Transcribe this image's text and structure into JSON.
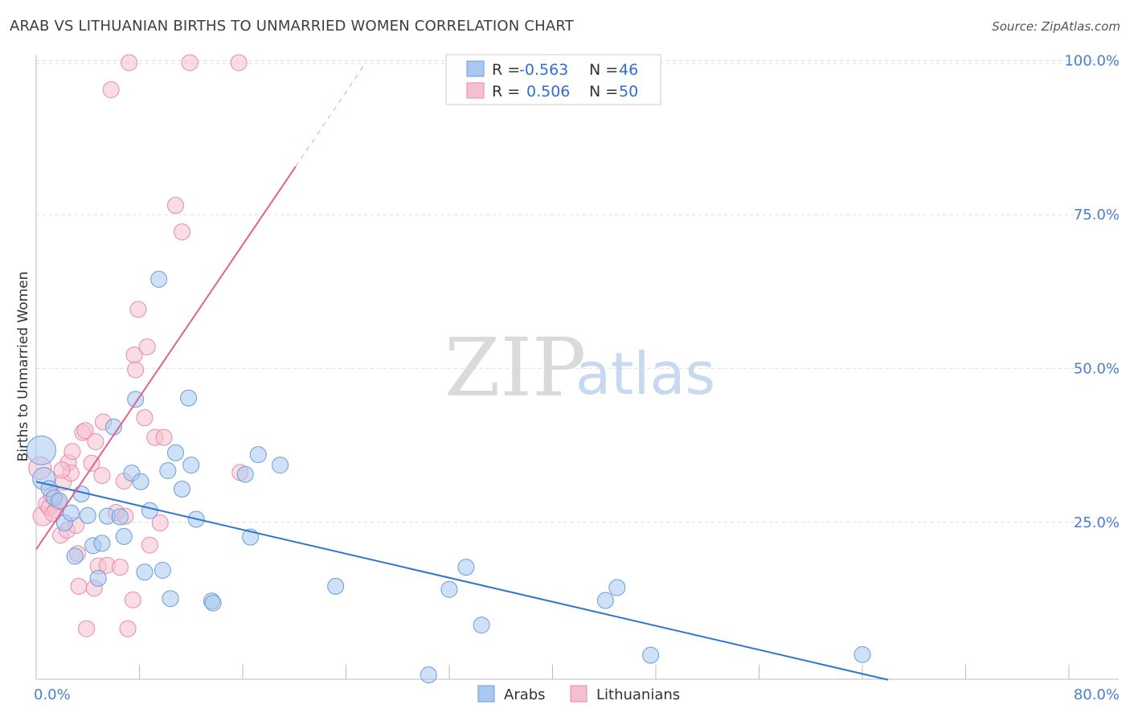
{
  "header": {
    "title": "ARAB VS LITHUANIAN BIRTHS TO UNMARRIED WOMEN CORRELATION CHART",
    "source": "Source: ZipAtlas.com"
  },
  "watermark": {
    "zip": "ZIP",
    "atlas": "atlas"
  },
  "legend": {
    "arabs": {
      "r_label": "R =",
      "r_value": "-0.563",
      "n_label": "N =",
      "n_value": "46"
    },
    "lithuanians": {
      "r_label": "R =",
      "r_value": "0.506",
      "n_label": "N =",
      "n_value": "50"
    }
  },
  "bottom_legend": {
    "arabs": "Arabs",
    "lithuanians": "Lithuanians"
  },
  "colors": {
    "arabs_fill": "#a8c8ef",
    "arabs_stroke": "#6b9bd8",
    "arabs_line": "#2f74d0",
    "lith_fill": "#f6bfd0",
    "lith_stroke": "#e889aa",
    "lith_line": "#e0628e",
    "grid": "#dddddd",
    "tick_label": "#4a7fc9"
  },
  "chart_data": {
    "type": "scatter",
    "title": "ARAB VS LITHUANIAN BIRTHS TO UNMARRIED WOMEN CORRELATION CHART",
    "xlabel": "",
    "ylabel": "Births to Unmarried Women",
    "xlim": [
      0,
      80
    ],
    "ylim": [
      -0.5,
      101
    ],
    "x_tick_labels": [
      "0.0%",
      "80.0%"
    ],
    "y_ticks": [
      25,
      50,
      75,
      100
    ],
    "y_tick_labels": [
      "25.0%",
      "50.0%",
      "75.0%",
      "100.0%"
    ],
    "series": [
      {
        "name": "Arabs",
        "r": -0.563,
        "n": 46,
        "trend": {
          "x1": 0,
          "y1": 31.6,
          "x2": 66,
          "y2": -0.6
        },
        "points": [
          [
            0.4,
            36.7,
            18
          ],
          [
            0.6,
            32.1,
            14
          ],
          [
            1.0,
            30.5,
            10
          ],
          [
            1.4,
            29.0,
            10
          ],
          [
            1.8,
            28.5,
            10
          ],
          [
            2.2,
            24.9,
            10
          ],
          [
            2.7,
            26.5,
            10
          ],
          [
            3.0,
            19.5,
            10
          ],
          [
            3.5,
            29.6,
            10
          ],
          [
            4.0,
            26.1,
            10
          ],
          [
            4.4,
            21.2,
            10
          ],
          [
            4.8,
            15.9,
            10
          ],
          [
            5.1,
            21.6,
            10
          ],
          [
            5.5,
            26.0,
            10
          ],
          [
            6.0,
            40.5,
            10
          ],
          [
            6.5,
            25.9,
            10
          ],
          [
            6.8,
            22.7,
            10
          ],
          [
            7.4,
            33.0,
            10
          ],
          [
            7.7,
            45.0,
            10
          ],
          [
            8.1,
            31.6,
            10
          ],
          [
            8.4,
            16.9,
            10
          ],
          [
            8.8,
            26.9,
            10
          ],
          [
            9.5,
            64.5,
            10
          ],
          [
            9.8,
            17.2,
            10
          ],
          [
            10.2,
            33.4,
            10
          ],
          [
            10.4,
            12.6,
            10
          ],
          [
            10.8,
            36.3,
            10
          ],
          [
            11.3,
            30.4,
            10
          ],
          [
            11.8,
            45.2,
            10
          ],
          [
            12.0,
            34.3,
            10
          ],
          [
            12.4,
            25.5,
            10
          ],
          [
            13.6,
            12.2,
            10
          ],
          [
            13.7,
            11.9,
            10
          ],
          [
            16.2,
            32.8,
            10
          ],
          [
            16.6,
            22.6,
            10
          ],
          [
            17.2,
            36.0,
            10
          ],
          [
            18.9,
            34.3,
            10
          ],
          [
            23.2,
            14.6,
            10
          ],
          [
            30.4,
            0.2,
            10
          ],
          [
            32.0,
            14.1,
            10
          ],
          [
            33.3,
            17.7,
            10
          ],
          [
            34.5,
            8.3,
            10
          ],
          [
            44.1,
            12.3,
            10
          ],
          [
            45.0,
            14.4,
            10
          ],
          [
            47.6,
            3.4,
            10
          ],
          [
            64.0,
            3.5,
            10
          ]
        ]
      },
      {
        "name": "Lithuanians",
        "r": 0.506,
        "n": 50,
        "trend": {
          "x1": 0,
          "y1": 20.6,
          "x2": 20.1,
          "y2": 82.8
        },
        "trend_dashed": {
          "x1": 20.1,
          "y1": 82.8,
          "x2": 25.4,
          "y2": 99.3
        },
        "points": [
          [
            0.3,
            33.8,
            14
          ],
          [
            0.5,
            26.0,
            12
          ],
          [
            0.8,
            28.0,
            10
          ],
          [
            1.0,
            27.4,
            10
          ],
          [
            1.2,
            29.4,
            10
          ],
          [
            1.5,
            27.0,
            10
          ],
          [
            1.7,
            28.3,
            10
          ],
          [
            1.9,
            22.9,
            10
          ],
          [
            2.1,
            31.5,
            10
          ],
          [
            2.4,
            23.7,
            10
          ],
          [
            2.5,
            34.7,
            10
          ],
          [
            2.7,
            33.0,
            10
          ],
          [
            2.8,
            36.5,
            10
          ],
          [
            3.1,
            24.5,
            10
          ],
          [
            3.2,
            19.9,
            10
          ],
          [
            3.3,
            14.6,
            10
          ],
          [
            3.6,
            39.6,
            10
          ],
          [
            3.8,
            39.9,
            10
          ],
          [
            3.9,
            7.7,
            10
          ],
          [
            4.3,
            34.6,
            10
          ],
          [
            4.5,
            14.3,
            10
          ],
          [
            4.6,
            38.1,
            10
          ],
          [
            4.8,
            17.9,
            10
          ],
          [
            5.1,
            32.6,
            10
          ],
          [
            5.2,
            41.3,
            10
          ],
          [
            5.5,
            18.0,
            10
          ],
          [
            5.8,
            95.3,
            10
          ],
          [
            6.2,
            26.6,
            10
          ],
          [
            6.5,
            17.7,
            10
          ],
          [
            6.8,
            31.7,
            10
          ],
          [
            6.9,
            26.0,
            10
          ],
          [
            7.1,
            7.7,
            10
          ],
          [
            7.2,
            99.7,
            10
          ],
          [
            7.6,
            52.2,
            10
          ],
          [
            7.5,
            12.4,
            10
          ],
          [
            7.7,
            49.8,
            10
          ],
          [
            7.9,
            59.6,
            10
          ],
          [
            8.4,
            42.0,
            10
          ],
          [
            8.6,
            53.5,
            10
          ],
          [
            8.8,
            21.3,
            10
          ],
          [
            9.2,
            38.8,
            10
          ],
          [
            9.6,
            24.9,
            10
          ],
          [
            9.9,
            38.8,
            10
          ],
          [
            10.8,
            76.5,
            10
          ],
          [
            11.3,
            72.2,
            10
          ],
          [
            11.9,
            99.7,
            10
          ],
          [
            15.7,
            99.7,
            10
          ],
          [
            15.8,
            33.1,
            10
          ],
          [
            2.0,
            33.5,
            10
          ],
          [
            1.3,
            26.4,
            10
          ]
        ]
      }
    ]
  }
}
